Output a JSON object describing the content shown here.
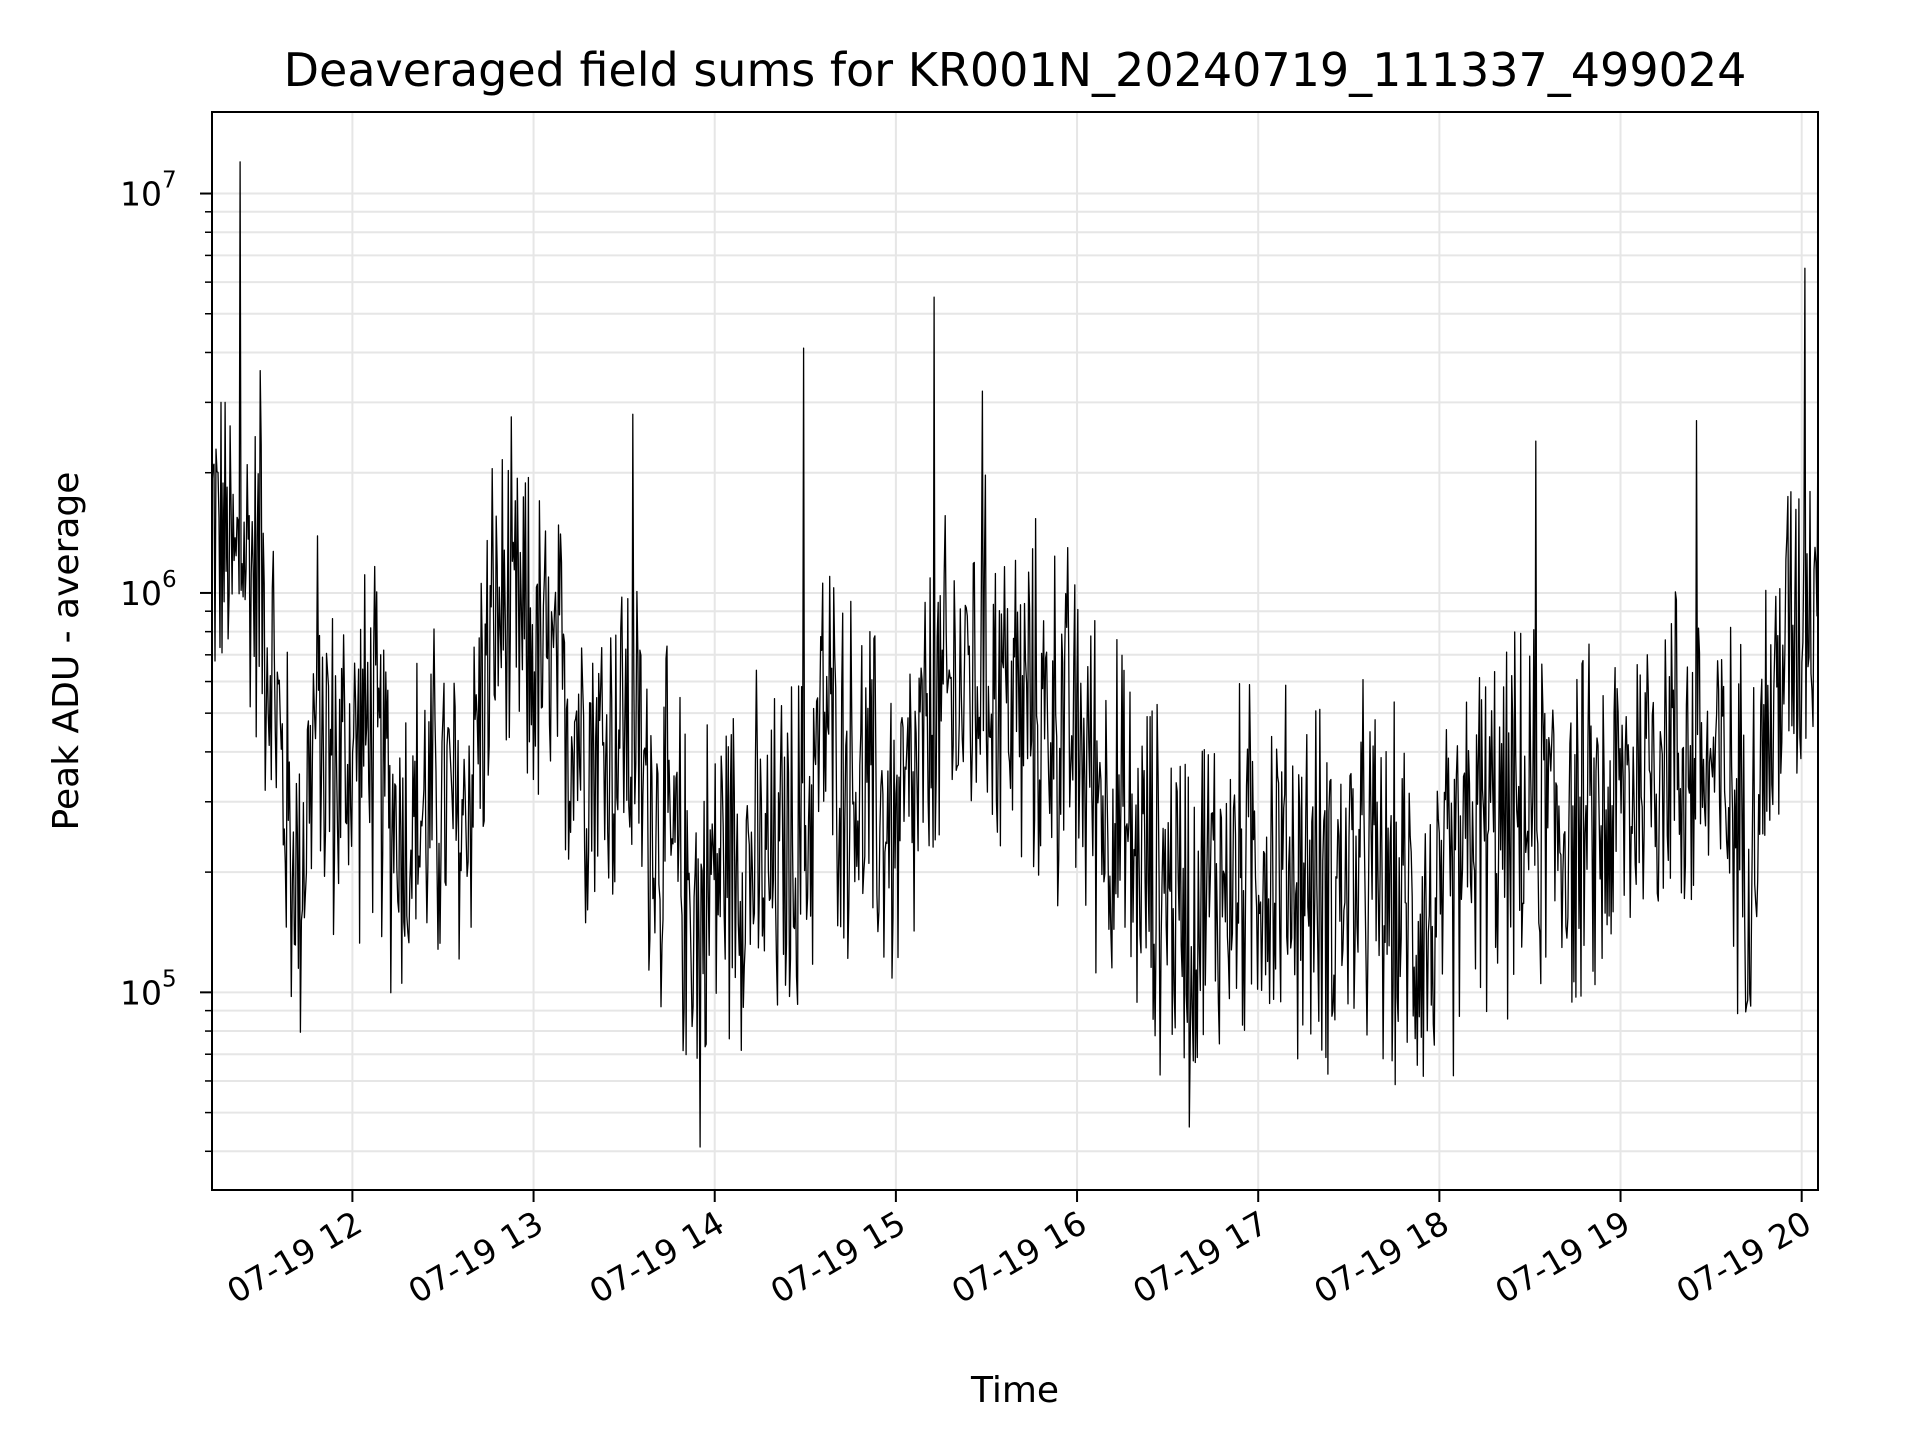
{
  "chart_data": {
    "type": "line",
    "title": "Deaveraged field sums for KR001N_20240719_111337_499024",
    "xlabel": "Time",
    "ylabel": "Peak ADU - average",
    "x_start": "2024-07-19 11:13",
    "x_end": "2024-07-19 20:05",
    "xlim_hours": [
      11.225,
      20.09
    ],
    "ylim": [
      32000,
      16000000
    ],
    "yscale": "log",
    "grid": true,
    "series_color": "#000000",
    "grid_color": "#e6e6e6",
    "x_ticks": [
      {
        "label": "07-19 12",
        "hour": 12
      },
      {
        "label": "07-19 13",
        "hour": 13
      },
      {
        "label": "07-19 14",
        "hour": 14
      },
      {
        "label": "07-19 15",
        "hour": 15
      },
      {
        "label": "07-19 16",
        "hour": 16
      },
      {
        "label": "07-19 17",
        "hour": 17
      },
      {
        "label": "07-19 18",
        "hour": 18
      },
      {
        "label": "07-19 19",
        "hour": 19
      },
      {
        "label": "07-19 20",
        "hour": 20
      }
    ],
    "y_ticks": [
      {
        "base": "10",
        "exp": "5",
        "value": 100000
      },
      {
        "base": "10",
        "exp": "6",
        "value": 1000000
      },
      {
        "base": "10",
        "exp": "7",
        "value": 10000000
      }
    ],
    "series": [
      {
        "values_hours": [
          11.225,
          11.3,
          11.35,
          11.4,
          11.45,
          11.5,
          11.55,
          11.6,
          11.65,
          11.7,
          11.75,
          11.8,
          11.9,
          12.0,
          12.1,
          12.2,
          12.3,
          12.4,
          12.5,
          12.6,
          12.7,
          12.8,
          12.9,
          13.0,
          13.1,
          13.2,
          13.3,
          13.4,
          13.5,
          13.6,
          13.7,
          13.8,
          13.9,
          14.0,
          14.1,
          14.2,
          14.3,
          14.4,
          14.5,
          14.6,
          14.7,
          14.8,
          14.9,
          15.0,
          15.1,
          15.2,
          15.3,
          15.4,
          15.5,
          15.6,
          15.7,
          15.8,
          15.9,
          16.0,
          16.1,
          16.2,
          16.3,
          16.4,
          16.5,
          16.6,
          16.7,
          16.8,
          16.9,
          17.0,
          17.1,
          17.2,
          17.3,
          17.4,
          17.5,
          17.6,
          17.7,
          17.8,
          17.9,
          18.0,
          18.1,
          18.2,
          18.3,
          18.4,
          18.5,
          18.6,
          18.7,
          18.8,
          18.9,
          19.0,
          19.1,
          19.2,
          19.3,
          19.4,
          19.5,
          19.6,
          19.7,
          19.8,
          19.9,
          20.0,
          20.09
        ],
        "values": [
          1500000,
          1300000,
          1100000,
          1300000,
          1200000,
          1000000,
          700000,
          400000,
          250000,
          180000,
          300000,
          500000,
          350000,
          400000,
          450000,
          300000,
          250000,
          280000,
          300000,
          250000,
          500000,
          900000,
          800000,
          700000,
          600000,
          500000,
          450000,
          400000,
          500000,
          350000,
          250000,
          200000,
          160000,
          200000,
          230000,
          210000,
          190000,
          220000,
          240000,
          500000,
          380000,
          320000,
          280000,
          250000,
          300000,
          450000,
          550000,
          600000,
          650000,
          600000,
          500000,
          500000,
          480000,
          420000,
          350000,
          280000,
          220000,
          200000,
          180000,
          170000,
          180000,
          190000,
          200000,
          220000,
          210000,
          200000,
          190000,
          180000,
          190000,
          200000,
          170000,
          160000,
          150000,
          140000,
          200000,
          260000,
          250000,
          260000,
          270000,
          280000,
          260000,
          240000,
          260000,
          300000,
          350000,
          420000,
          400000,
          380000,
          360000,
          300000,
          250000,
          400000,
          700000,
          900000,
          1300000
        ],
        "spikes": [
          {
            "hour": 11.38,
            "value": 12000000
          },
          {
            "hour": 11.49,
            "value": 3600000
          },
          {
            "hour": 13.55,
            "value": 2800000
          },
          {
            "hour": 13.92,
            "value": 41000
          },
          {
            "hour": 14.49,
            "value": 4100000
          },
          {
            "hour": 15.21,
            "value": 5500000
          },
          {
            "hour": 15.48,
            "value": 3200000
          },
          {
            "hour": 16.62,
            "value": 46000
          },
          {
            "hour": 18.53,
            "value": 2400000
          },
          {
            "hour": 19.42,
            "value": 2700000
          },
          {
            "hour": 20.02,
            "value": 6500000
          }
        ]
      }
    ]
  }
}
